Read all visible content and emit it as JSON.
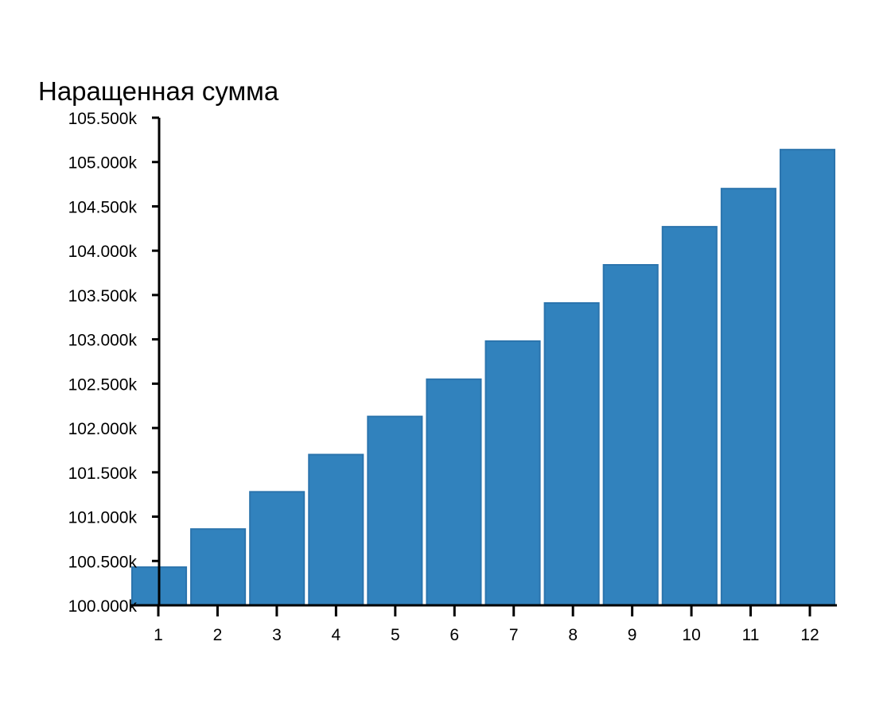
{
  "chart_data": {
    "type": "bar",
    "title": "Наращенная сумма",
    "xlabel": "",
    "ylabel": "",
    "categories": [
      "1",
      "2",
      "3",
      "4",
      "5",
      "6",
      "7",
      "8",
      "9",
      "10",
      "11",
      "12"
    ],
    "values": [
      100430,
      100860,
      101280,
      101700,
      102130,
      102550,
      102980,
      103410,
      103840,
      104270,
      104700,
      105140
    ],
    "ylim": [
      100000,
      105500
    ],
    "yticks": [
      100000,
      100500,
      101000,
      101500,
      102000,
      102500,
      103000,
      103500,
      104000,
      104500,
      105000,
      105500
    ],
    "ytick_labels": [
      "100.000k",
      "100.500k",
      "101.000k",
      "101.500k",
      "102.000k",
      "102.500k",
      "103.000k",
      "103.500k",
      "104.000k",
      "104.500k",
      "105.000k",
      "105.500k"
    ],
    "bar_color": "#3182bd",
    "grid": false,
    "legend": "none"
  }
}
